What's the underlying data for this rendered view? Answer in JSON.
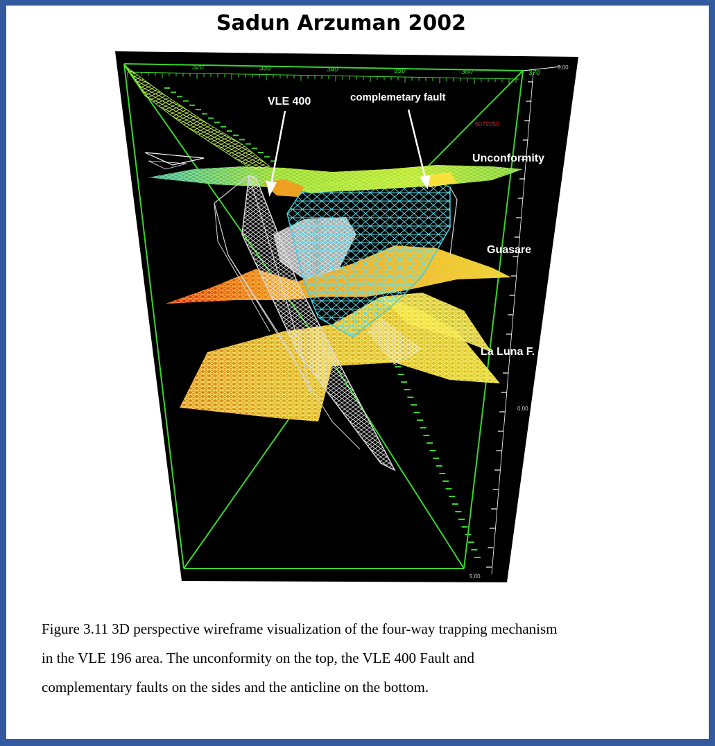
{
  "title": "Sadun Arzuman 2002",
  "figure": {
    "labels": {
      "fault": "VLE 400",
      "comp_fault": "complemetary fault",
      "unconformity": "Unconformity",
      "guasare": "Guasare",
      "laluna": "La Luna F."
    },
    "axis_top_ticks": [
      "320",
      "330",
      "340",
      "350",
      "360",
      "370"
    ],
    "right_values": [
      "5.00",
      "0.00",
      "5.00"
    ],
    "red_text": "6072050",
    "colors": {
      "background": "#000000",
      "box": "#39d62b",
      "fault": "#d8d8d8",
      "comp_fault": "#40c8d8"
    }
  },
  "caption": {
    "line1": "Figure 3.11 3D perspective wireframe visualization of the four-way trapping mechanism",
    "line2": "in the VLE 196 area. The unconformity on the top, the VLE 400 Fault and",
    "line3": "complementary faults on the sides and the anticline on the bottom."
  }
}
